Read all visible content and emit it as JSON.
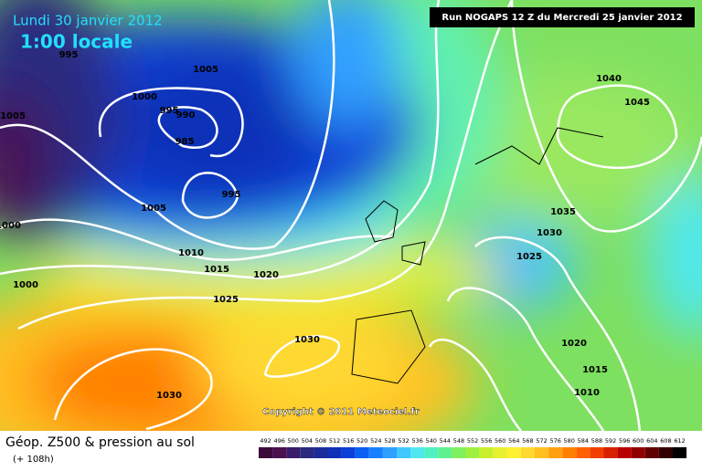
{
  "header": {
    "date": "Lundi 30 janvier 2012",
    "time": "1:00 locale",
    "run": "Run NOGAPS 12 Z du Mercredi 25 janvier 2012"
  },
  "isobar_labels": [
    "995",
    "1005",
    "1000",
    "995",
    "990",
    "985",
    "1005",
    "995",
    "1005",
    "1000",
    "1010",
    "1015",
    "1020",
    "1025",
    "1000",
    "1030",
    "1030",
    "1040",
    "1045",
    "1035",
    "1030",
    "1025",
    "1020",
    "1015",
    "1010"
  ],
  "copyright": "Copyright © 2011 Meteociel.fr",
  "footer": {
    "title": "Géop. Z500 & pression au sol",
    "lead": "(+ 108h)"
  },
  "legend": {
    "values": [
      "492",
      "496",
      "500",
      "504",
      "508",
      "512",
      "516",
      "520",
      "524",
      "528",
      "532",
      "536",
      "540",
      "544",
      "548",
      "552",
      "556",
      "560",
      "564",
      "568",
      "572",
      "576",
      "580",
      "584",
      "588",
      "592",
      "596",
      "600",
      "604",
      "608",
      "612"
    ],
    "colors": [
      "#3c0a3a",
      "#4a1050",
      "#3a1a6a",
      "#2a2a80",
      "#1c2a9a",
      "#1030b8",
      "#0a40d8",
      "#0a60f0",
      "#1880ff",
      "#30a0ff",
      "#40c8ff",
      "#50e8f0",
      "#50f0c0",
      "#60f090",
      "#80f060",
      "#a0f040",
      "#c8f030",
      "#e8f030",
      "#fff030",
      "#ffd830",
      "#ffc020",
      "#ffa010",
      "#ff8000",
      "#ff6000",
      "#f04000",
      "#d82000",
      "#b80000",
      "#900000",
      "#600000",
      "#300000",
      "#000000"
    ]
  }
}
